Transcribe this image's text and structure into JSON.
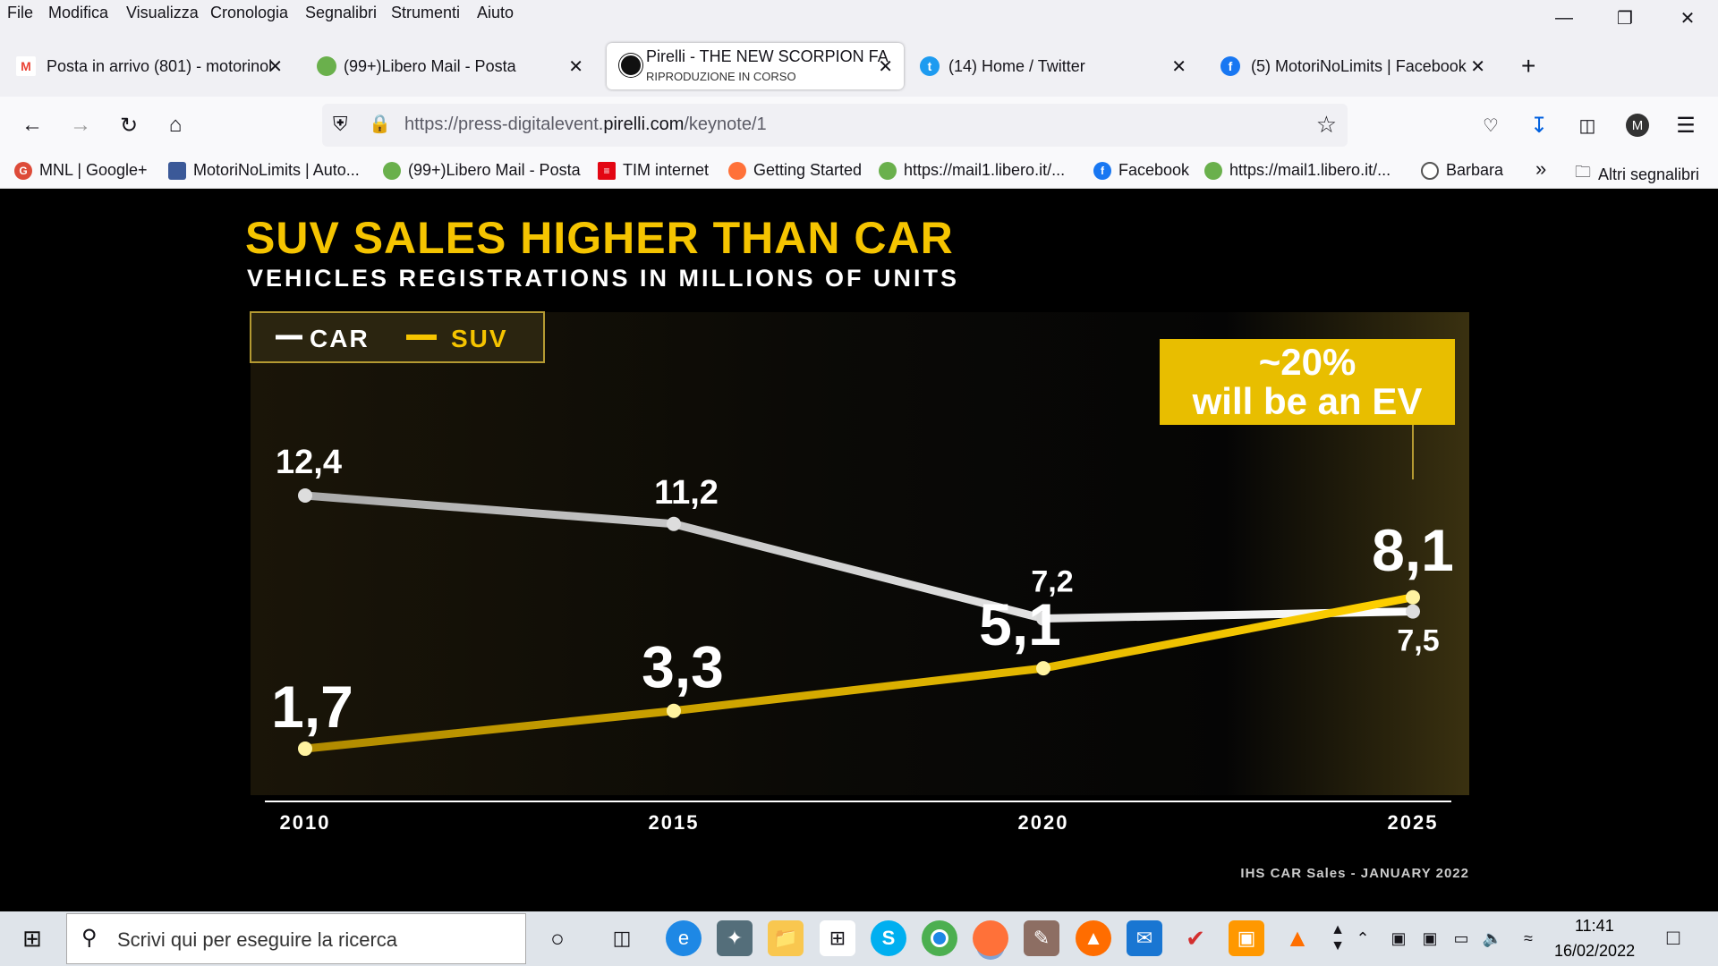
{
  "menu": [
    "File",
    "Modifica",
    "Visualizza",
    "Cronologia",
    "Segnalibri",
    "Strumenti",
    "Aiuto"
  ],
  "tabs": [
    {
      "title": "Posta in arrivo (801) - motorinol",
      "icon": "gmail-icon"
    },
    {
      "title": "(99+)Libero Mail - Posta",
      "icon": "libero-icon"
    },
    {
      "title": "Pirelli - THE NEW SCORPION FA",
      "subtitle": "RIPRODUZIONE IN CORSO",
      "icon": "pirelli-icon",
      "active": true
    },
    {
      "title": "(14) Home / Twitter",
      "icon": "twitter-icon"
    },
    {
      "title": "(5) MotoriNoLimits | Facebook",
      "icon": "facebook-icon"
    }
  ],
  "url": {
    "prefix": "https://press-digitalevent.",
    "domain": "pirelli.com",
    "path": "/keynote/1"
  },
  "bookmarks": [
    {
      "label": "MNL | Google+",
      "icon": "google-plus-icon",
      "color": "#dd4b39"
    },
    {
      "label": "MotoriNoLimits | Auto...",
      "icon": "car-icon",
      "color": "#3b5998"
    },
    {
      "label": "(99+)Libero Mail - Posta",
      "icon": "libero-icon",
      "color": "#6ab04c"
    },
    {
      "label": "TIM internet",
      "icon": "tim-icon",
      "color": "#e30613"
    },
    {
      "label": "Getting Started",
      "icon": "firefox-icon",
      "color": "#ff7139"
    },
    {
      "label": "https://mail1.libero.it/...",
      "icon": "libero-icon",
      "color": "#6ab04c"
    },
    {
      "label": "Facebook",
      "icon": "facebook-icon",
      "color": "#1877f2"
    },
    {
      "label": "https://mail1.libero.it/...",
      "icon": "libero-icon",
      "color": "#6ab04c"
    },
    {
      "label": "Barbara",
      "icon": "globe-icon",
      "color": "#555555"
    }
  ],
  "bookmarks_more": "Altri segnalibri",
  "chart_data": {
    "type": "line",
    "title": "SUV SALES HIGHER THAN CAR",
    "subtitle": "VEHICLES REGISTRATIONS IN MILLIONS OF UNITS",
    "categories": [
      "2010",
      "2015",
      "2020",
      "2025"
    ],
    "series": [
      {
        "name": "CAR",
        "values": [
          12.4,
          11.2,
          7.2,
          7.5
        ],
        "labels": [
          "12,4",
          "11,2",
          "7,2",
          "7,5"
        ],
        "color": "#ffffff"
      },
      {
        "name": "SUV",
        "values": [
          1.7,
          3.3,
          5.1,
          8.1
        ],
        "labels": [
          "1,7",
          "3,3",
          "5,1",
          "8,1"
        ],
        "color": "#f5c400"
      }
    ],
    "ylim": [
      0,
      14
    ],
    "legend": "top-left",
    "annotation": {
      "line1": "~20%",
      "line2": "will be an EV"
    },
    "source": "IHS CAR Sales - JANUARY 2022"
  },
  "taskbar": {
    "search_placeholder": "Scrivi qui per eseguire la ricerca",
    "time": "11:41",
    "date": "16/02/2022"
  }
}
